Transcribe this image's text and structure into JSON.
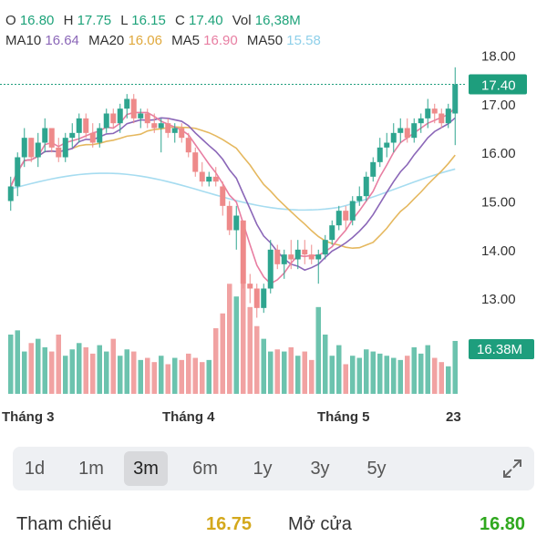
{
  "ohlc": {
    "o_label": "O",
    "o": "16.80",
    "h_label": "H",
    "h": "17.75",
    "l_label": "L",
    "l": "16.15",
    "c_label": "C",
    "c": "17.40",
    "vol_label": "Vol",
    "vol": "16,38M"
  },
  "ma": {
    "ma10_label": "MA10",
    "ma10": "16.64",
    "ma20_label": "MA20",
    "ma20": "16.06",
    "ma5_label": "MA5",
    "ma5": "16.90",
    "ma50_label": "MA50",
    "ma50": "15.58"
  },
  "colors": {
    "up": "#2ea58f",
    "down": "#ee8a8a",
    "ma5": "#e87ea2",
    "ma10": "#8b67b8",
    "ma20": "#e5b85f",
    "ma50": "#a6dcf0",
    "accent": "#1e9e7d"
  },
  "price_axis": {
    "ticks": [
      "18.00",
      "17.00",
      "16.00",
      "15.00",
      "14.00",
      "13.00"
    ],
    "last_price": "17.40",
    "last_volume": "16.38M"
  },
  "time_axis": {
    "labels": [
      "Tháng 3",
      "Tháng 4",
      "Tháng 5",
      "23"
    ]
  },
  "timeframes": {
    "items": [
      "1d",
      "1m",
      "3m",
      "6m",
      "1y",
      "3y",
      "5y"
    ],
    "active": "3m",
    "expand_icon": "expand-icon"
  },
  "stats": {
    "ref_label": "Tham chiếu",
    "ref_value": "16.75",
    "ref_color": "#d4a81c",
    "open_label": "Mở cửa",
    "open_value": "16.80",
    "open_color": "#2fa81e"
  },
  "chart_data": {
    "type": "candlestick",
    "y_range": [
      12.3,
      18.2
    ],
    "candles": [
      [
        15.0,
        15.5,
        14.8,
        15.3
      ],
      [
        15.3,
        16.0,
        15.1,
        15.9
      ],
      [
        15.9,
        16.5,
        15.7,
        16.3
      ],
      [
        16.3,
        16.3,
        15.8,
        15.9
      ],
      [
        15.9,
        16.4,
        15.7,
        16.2
      ],
      [
        16.2,
        16.7,
        16.0,
        16.5
      ],
      [
        16.5,
        16.5,
        16.0,
        16.1
      ],
      [
        16.1,
        16.3,
        15.8,
        15.9
      ],
      [
        15.9,
        16.4,
        15.8,
        16.3
      ],
      [
        16.3,
        16.6,
        16.1,
        16.4
      ],
      [
        16.4,
        16.8,
        16.2,
        16.7
      ],
      [
        16.7,
        16.8,
        16.3,
        16.4
      ],
      [
        16.4,
        16.6,
        16.1,
        16.2
      ],
      [
        16.2,
        16.6,
        16.1,
        16.5
      ],
      [
        16.5,
        16.9,
        16.4,
        16.8
      ],
      [
        16.8,
        16.9,
        16.5,
        16.6
      ],
      [
        16.6,
        17.0,
        16.4,
        16.9
      ],
      [
        16.9,
        17.2,
        16.7,
        17.1
      ],
      [
        17.1,
        17.2,
        16.6,
        16.7
      ],
      [
        16.7,
        16.9,
        16.5,
        16.8
      ],
      [
        16.8,
        16.9,
        16.5,
        16.6
      ],
      [
        16.6,
        16.8,
        16.4,
        16.5
      ],
      [
        16.5,
        16.7,
        16.0,
        16.6
      ],
      [
        16.6,
        16.7,
        16.3,
        16.4
      ],
      [
        16.4,
        16.6,
        16.2,
        16.5
      ],
      [
        16.5,
        16.6,
        16.2,
        16.3
      ],
      [
        16.3,
        16.4,
        15.9,
        16.0
      ],
      [
        16.0,
        16.1,
        15.5,
        15.6
      ],
      [
        15.6,
        15.8,
        15.3,
        15.4
      ],
      [
        15.4,
        15.6,
        15.3,
        15.5
      ],
      [
        15.5,
        15.7,
        15.3,
        15.4
      ],
      [
        15.3,
        15.4,
        14.7,
        14.9
      ],
      [
        14.9,
        15.0,
        14.3,
        14.4
      ],
      [
        14.4,
        14.9,
        14.0,
        14.7
      ],
      [
        14.6,
        14.6,
        13.2,
        13.3
      ],
      [
        13.3,
        13.5,
        12.9,
        13.2
      ],
      [
        13.2,
        13.3,
        12.6,
        12.8
      ],
      [
        12.8,
        13.3,
        12.7,
        13.2
      ],
      [
        13.2,
        14.2,
        13.1,
        14.0
      ],
      [
        14.0,
        14.1,
        13.6,
        13.7
      ],
      [
        13.7,
        14.0,
        13.4,
        13.9
      ],
      [
        13.9,
        14.2,
        13.6,
        13.8
      ],
      [
        13.8,
        14.2,
        13.6,
        14.0
      ],
      [
        14.0,
        14.2,
        13.7,
        13.9
      ],
      [
        13.9,
        14.1,
        13.7,
        13.8
      ],
      [
        13.8,
        14.0,
        13.3,
        13.9
      ],
      [
        13.9,
        14.3,
        13.8,
        14.2
      ],
      [
        14.2,
        14.6,
        14.1,
        14.5
      ],
      [
        14.5,
        14.9,
        14.4,
        14.8
      ],
      [
        14.8,
        14.9,
        14.4,
        14.6
      ],
      [
        14.6,
        15.1,
        14.5,
        15.0
      ],
      [
        15.0,
        15.3,
        14.9,
        15.1
      ],
      [
        15.1,
        15.6,
        15.0,
        15.5
      ],
      [
        15.5,
        15.9,
        15.4,
        15.8
      ],
      [
        15.8,
        16.3,
        15.7,
        16.1
      ],
      [
        16.1,
        16.4,
        15.9,
        16.2
      ],
      [
        16.2,
        16.6,
        16.0,
        16.4
      ],
      [
        16.4,
        16.7,
        16.2,
        16.5
      ],
      [
        16.5,
        16.7,
        16.2,
        16.3
      ],
      [
        16.3,
        16.7,
        16.2,
        16.6
      ],
      [
        16.6,
        16.8,
        16.4,
        16.7
      ],
      [
        16.7,
        17.1,
        16.5,
        16.9
      ],
      [
        16.9,
        17.0,
        16.6,
        16.8
      ],
      [
        16.8,
        16.9,
        16.5,
        16.6
      ],
      [
        16.6,
        17.0,
        16.5,
        16.9
      ],
      [
        16.8,
        17.75,
        16.15,
        17.4
      ]
    ],
    "volume": [
      2.8,
      3.0,
      2.0,
      2.4,
      2.6,
      2.2,
      2.0,
      2.8,
      1.8,
      2.1,
      2.4,
      2.2,
      1.9,
      2.3,
      2.0,
      2.6,
      1.8,
      2.1,
      2.0,
      1.6,
      1.7,
      1.5,
      1.8,
      1.4,
      1.7,
      1.6,
      1.9,
      1.7,
      1.5,
      1.6,
      3.1,
      3.8,
      5.2,
      4.6,
      5.4,
      4.1,
      3.2,
      2.6,
      2.0,
      2.1,
      2.0,
      2.2,
      1.8,
      2.0,
      1.6,
      4.1,
      2.8,
      1.8,
      2.3,
      1.4,
      1.8,
      1.7,
      2.1,
      2.0,
      1.9,
      1.8,
      1.7,
      1.6,
      1.8,
      2.2,
      1.9,
      2.3,
      1.7,
      1.5,
      1.3,
      2.5
    ],
    "ma_series": [
      "MA5",
      "MA10",
      "MA20",
      "MA50"
    ]
  }
}
